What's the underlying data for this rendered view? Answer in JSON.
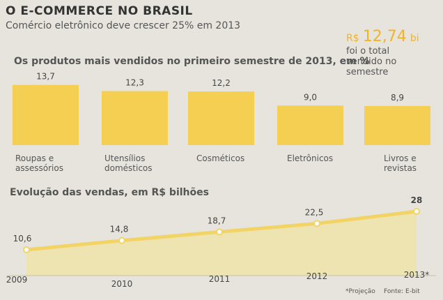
{
  "header": {
    "title": "O E-COMMERCE NO BRASIL",
    "subtitle": "Comércio eletrônico deve crescer 25% em 2013",
    "highlight": {
      "prefix": "R$",
      "value": "12,74",
      "suffix": "bi",
      "text": "foi o total vendido no semestre"
    }
  },
  "chart_data": [
    {
      "type": "bar",
      "title": "Os produtos mais vendidos no primeiro semestre de 2013, em %",
      "categories": [
        "Roupas e assessórios",
        "Utensílios domésticos",
        "Cosméticos",
        "Eletrônicos",
        "Livros e revistas"
      ],
      "values": [
        13.7,
        12.3,
        12.2,
        9.0,
        8.9
      ],
      "value_labels": [
        "13,7",
        "12,3",
        "12,2",
        "9,0",
        "8,9"
      ],
      "color": "#f4cf52"
    },
    {
      "type": "line",
      "title": "Evolução das vendas, em R$ bilhões",
      "categories": [
        "2009",
        "2010",
        "2011",
        "2012",
        "2013*"
      ],
      "values": [
        10.6,
        14.8,
        18.7,
        22.5,
        28
      ],
      "value_labels": [
        "10,6",
        "14,8",
        "18,7",
        "22,5",
        "28"
      ],
      "color": "#f2d466",
      "note": "*Projeção",
      "source": "Fonte: E-bit"
    }
  ]
}
